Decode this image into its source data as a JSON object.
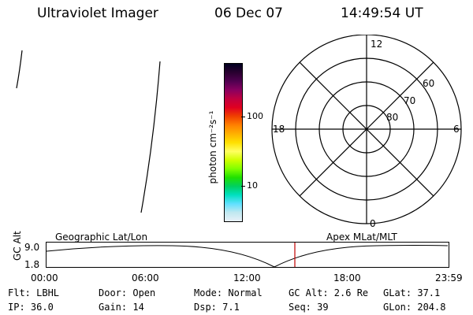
{
  "header": {
    "title": "Ultraviolet Imager",
    "date": "06 Dec 07",
    "time": "14:49:54 UT"
  },
  "colorbar": {
    "axis_label": "photon cm⁻²s⁻¹",
    "ticks": [
      {
        "label": "100"
      },
      {
        "label": "10"
      }
    ],
    "colors": [
      "#000020",
      "#2a0030",
      "#500050",
      "#8a0060",
      "#c00040",
      "#e00020",
      "#f04000",
      "#ff8000",
      "#ffb000",
      "#ffe000",
      "#ffff60",
      "#d0ff00",
      "#80ff00",
      "#20e000",
      "#00d060",
      "#00e0c0",
      "#60e0ff",
      "#c0e8f0",
      "#e8f0f8"
    ]
  },
  "polar": {
    "angle_labels": {
      "top": "12",
      "left": "18",
      "right": "6",
      "bottom": "0"
    },
    "lat_labels": [
      "60",
      "70",
      "80"
    ]
  },
  "timeline": {
    "y_axis_label": "GC Alt",
    "y_ticks": [
      "9.0",
      "1.8"
    ],
    "left_caption": "Geographic Lat/Lon",
    "right_caption": "Apex MLat/MLT",
    "x_ticks": [
      "00:00",
      "06:00",
      "12:00",
      "18:00",
      "23:59"
    ],
    "current_marker_color": "#c00000"
  },
  "status": {
    "rows": [
      [
        "Flt: LBHL",
        "Door: Open",
        "Mode: Normal",
        "GC Alt: 2.6 Re",
        "GLat:  37.1"
      ],
      [
        "IP: 36.0",
        "Gain: 14",
        "Dsp:     7.1",
        "Seq: 39",
        "GLon: 204.8"
      ]
    ]
  }
}
